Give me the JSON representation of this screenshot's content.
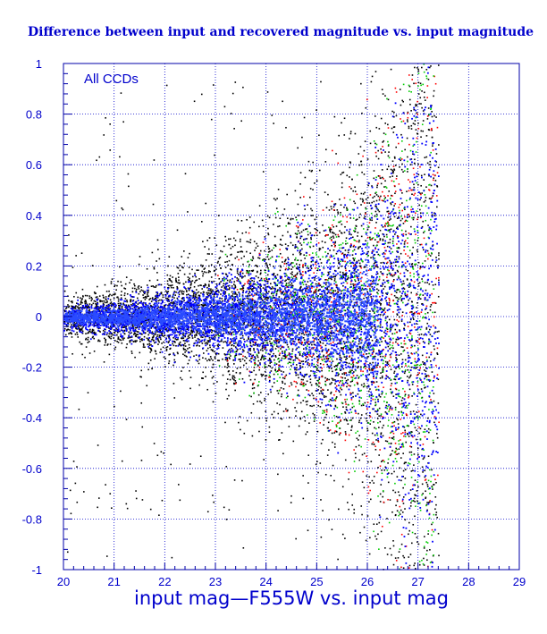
{
  "chart_data": {
    "type": "scatter",
    "title": "Difference between input and recovered magnitude vs. input magnitude",
    "xlabel": "input mag—F555W vs. input mag",
    "ylabel": "",
    "annotation": "All CCDs",
    "xlim": [
      20,
      29
    ],
    "ylim": [
      -1,
      1
    ],
    "grid": true,
    "x_ticks": [
      "20",
      "21",
      "22",
      "23",
      "24",
      "25",
      "26",
      "27",
      "28",
      "29"
    ],
    "y_ticks": [
      "1",
      "0.8",
      "0.6",
      "0.4",
      "0.2",
      "0",
      "-0.2",
      "-0.4",
      "-0.6",
      "-0.8",
      "-1"
    ],
    "colors": {
      "axis": "#0000aa",
      "grid": "#0000cc",
      "text": "#0000cc",
      "point_black": "#000000",
      "point_red": "#ff0000",
      "point_green": "#00cc00",
      "point_blue": "#0000ff",
      "point_core": "#2a4bff"
    },
    "series_envelope": [
      {
        "x": 20.0,
        "spread": 0.03
      },
      {
        "x": 21.0,
        "spread": 0.05
      },
      {
        "x": 22.0,
        "spread": 0.07
      },
      {
        "x": 23.0,
        "spread": 0.1
      },
      {
        "x": 24.0,
        "spread": 0.14
      },
      {
        "x": 25.0,
        "spread": 0.19
      },
      {
        "x": 25.5,
        "spread": 0.24
      },
      {
        "x": 26.0,
        "spread": 0.3
      },
      {
        "x": 26.5,
        "spread": 0.45
      },
      {
        "x": 27.0,
        "spread": 0.7
      },
      {
        "x": 27.4,
        "spread": 0.95
      }
    ]
  }
}
